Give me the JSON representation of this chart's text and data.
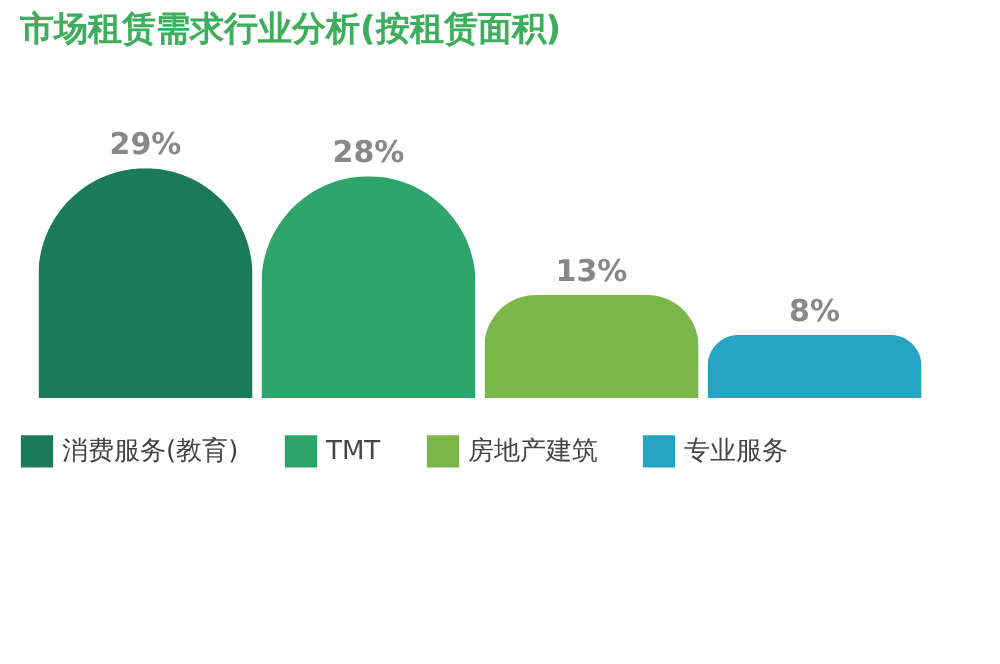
{
  "chart_data": {
    "type": "bar",
    "title": "市场租赁需求行业分析(按租赁面积)",
    "categories": [
      null
    ],
    "series": [
      {
        "name": "消费服务(教育)",
        "color": "#1b7a5a",
        "values": [
          29
        ],
        "value_labels": [
          "29%"
        ]
      },
      {
        "name": "TMT",
        "color": "#2ea56a",
        "values": [
          28
        ],
        "value_labels": [
          "28%"
        ]
      },
      {
        "name": "房地产建筑",
        "color": "#7ab648",
        "values": [
          13
        ],
        "value_labels": [
          "13%"
        ]
      },
      {
        "name": "专业服务",
        "color": "#27a3c4",
        "values": [
          8
        ],
        "value_labels": [
          "8%"
        ]
      }
    ],
    "legend": "bottom",
    "tick_labels": false
  }
}
